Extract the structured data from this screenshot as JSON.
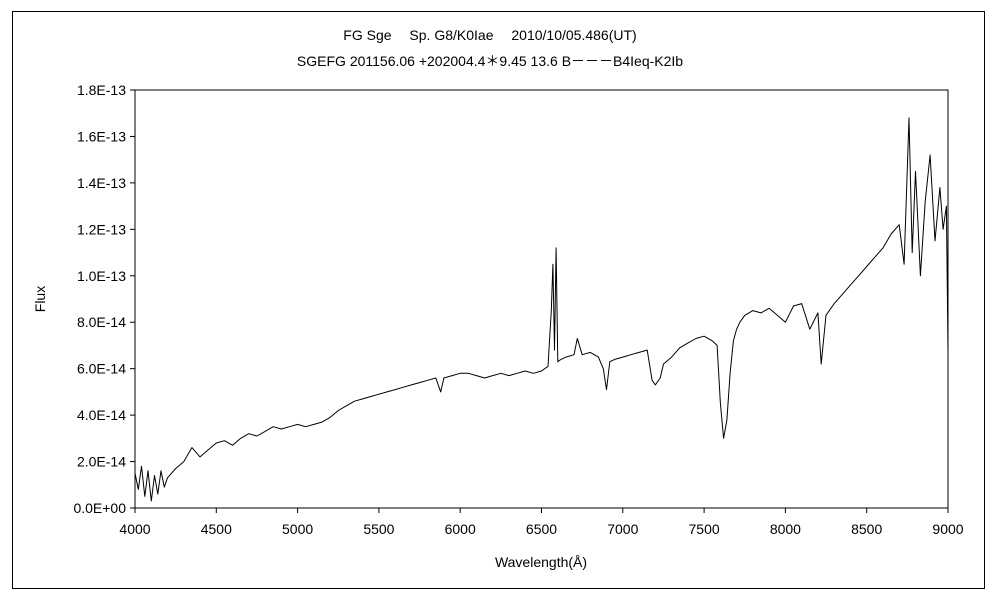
{
  "chart_data": {
    "type": "line",
    "title": "FG Sge　 Sp. G8/K0Iae　 2010/10/05.486(UT)",
    "subtitle": "SGEFG 201156.06 +202004.4＊9.45 13.6 B－－－B4Ieq-K2Ib",
    "xlabel": "Wavelength(Å)",
    "ylabel": "Flux",
    "xlim": [
      4000,
      9000
    ],
    "ylim": [
      0,
      1.8e-13
    ],
    "xticks": [
      4000,
      4500,
      5000,
      5500,
      6000,
      6500,
      7000,
      7500,
      8000,
      8500,
      9000
    ],
    "yticks": [
      0,
      2e-14,
      4e-14,
      6e-14,
      8e-14,
      1e-13,
      1.2e-13,
      1.4e-13,
      1.6e-13,
      1.8e-13
    ],
    "ytick_labels": [
      "0.0E+00",
      "2.0E-14",
      "4.0E-14",
      "6.0E-14",
      "8.0E-14",
      "1.0E-13",
      "1.2E-13",
      "1.4E-13",
      "1.6E-13",
      "1.8E-13"
    ],
    "grid": false,
    "legend": "none",
    "line_color": "#000000",
    "series": [
      {
        "x": [
          4000,
          4020,
          4040,
          4060,
          4080,
          4100,
          4120,
          4140,
          4160,
          4180,
          4200,
          4250,
          4300,
          4350,
          4400,
          4450,
          4500,
          4550,
          4600,
          4650,
          4700,
          4750,
          4800,
          4850,
          4900,
          4950,
          5000,
          5050,
          5100,
          5150,
          5200,
          5250,
          5300,
          5350,
          5400,
          5450,
          5500,
          5550,
          5600,
          5650,
          5700,
          5750,
          5800,
          5850,
          5880,
          5900,
          5950,
          6000,
          6050,
          6100,
          6150,
          6200,
          6250,
          6300,
          6350,
          6400,
          6450,
          6500,
          6540,
          6560,
          6570,
          6580,
          6590,
          6600,
          6620,
          6650,
          6700,
          6720,
          6750,
          6800,
          6850,
          6880,
          6900,
          6920,
          6950,
          7000,
          7050,
          7100,
          7150,
          7180,
          7200,
          7230,
          7250,
          7300,
          7350,
          7400,
          7450,
          7500,
          7550,
          7580,
          7600,
          7620,
          7640,
          7660,
          7680,
          7700,
          7720,
          7750,
          7800,
          7850,
          7900,
          7950,
          8000,
          8050,
          8100,
          8150,
          8200,
          8220,
          8250,
          8300,
          8350,
          8400,
          8450,
          8500,
          8550,
          8600,
          8650,
          8700,
          8730,
          8760,
          8780,
          8800,
          8830,
          8860,
          8890,
          8920,
          8950,
          8970,
          8990,
          9000
        ],
        "y": [
          1.5e-14,
          8e-15,
          1.8e-14,
          5e-15,
          1.6e-14,
          3e-15,
          1.4e-14,
          6e-15,
          1.6e-14,
          9e-15,
          1.3e-14,
          1.7e-14,
          2e-14,
          2.6e-14,
          2.2e-14,
          2.5e-14,
          2.8e-14,
          2.9e-14,
          2.7e-14,
          3e-14,
          3.2e-14,
          3.1e-14,
          3.3e-14,
          3.5e-14,
          3.4e-14,
          3.5e-14,
          3.6e-14,
          3.5e-14,
          3.6e-14,
          3.7e-14,
          3.9e-14,
          4.2e-14,
          4.4e-14,
          4.6e-14,
          4.7e-14,
          4.8e-14,
          4.9e-14,
          5e-14,
          5.1e-14,
          5.2e-14,
          5.3e-14,
          5.4e-14,
          5.5e-14,
          5.6e-14,
          5e-14,
          5.6e-14,
          5.7e-14,
          5.8e-14,
          5.8e-14,
          5.7e-14,
          5.6e-14,
          5.7e-14,
          5.8e-14,
          5.7e-14,
          5.8e-14,
          5.9e-14,
          5.8e-14,
          5.9e-14,
          6.1e-14,
          8.5e-14,
          1.05e-13,
          6.8e-14,
          1.12e-13,
          6.3e-14,
          6.4e-14,
          6.5e-14,
          6.6e-14,
          7.3e-14,
          6.6e-14,
          6.7e-14,
          6.5e-14,
          6e-14,
          5.1e-14,
          6.3e-14,
          6.4e-14,
          6.5e-14,
          6.6e-14,
          6.7e-14,
          6.8e-14,
          5.5e-14,
          5.3e-14,
          5.6e-14,
          6.2e-14,
          6.5e-14,
          6.9e-14,
          7.1e-14,
          7.3e-14,
          7.4e-14,
          7.2e-14,
          7e-14,
          4.5e-14,
          3e-14,
          3.8e-14,
          5.8e-14,
          7.2e-14,
          7.7e-14,
          8e-14,
          8.3e-14,
          8.5e-14,
          8.4e-14,
          8.6e-14,
          8.3e-14,
          8e-14,
          8.7e-14,
          8.8e-14,
          7.7e-14,
          8.4e-14,
          6.2e-14,
          8.3e-14,
          8.8e-14,
          9.2e-14,
          9.6e-14,
          1e-13,
          1.04e-13,
          1.08e-13,
          1.12e-13,
          1.18e-13,
          1.22e-13,
          1.05e-13,
          1.68e-13,
          1.1e-13,
          1.45e-13,
          1e-13,
          1.32e-13,
          1.52e-13,
          1.15e-13,
          1.38e-13,
          1.2e-13,
          1.3e-13,
          6.7e-14
        ]
      }
    ]
  }
}
